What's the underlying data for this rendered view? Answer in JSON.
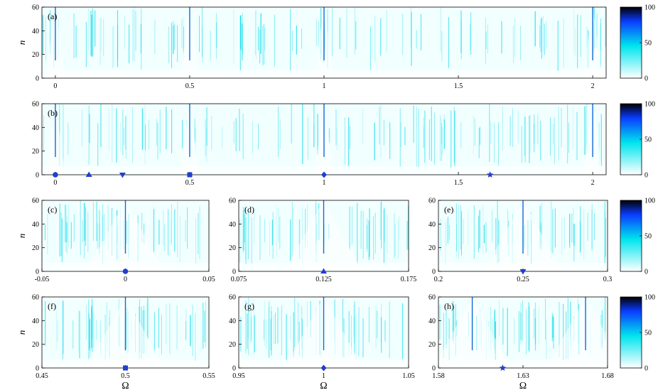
{
  "chart_data": {
    "type": "heatmap",
    "colorbar": {
      "ticks": [
        "0",
        "50",
        "100"
      ],
      "range": [
        0,
        100
      ],
      "colors": [
        "#ffffff",
        "#00e5ee",
        "#0a3cff",
        "#000000"
      ]
    },
    "marker_color": "#1f3fd1",
    "ylabel": "n",
    "xlabel": "Ω",
    "panels": [
      {
        "label": "(a)",
        "xlim": [
          -0.05,
          2.05
        ],
        "ylim": [
          0,
          60
        ],
        "x_ticks": [
          "0",
          "0.5",
          "1",
          "1.5",
          "2"
        ],
        "x_tick_values": [
          0,
          0.5,
          1,
          1.5,
          2
        ],
        "y_ticks": [
          "0",
          "20",
          "40",
          "60"
        ],
        "show_ylabel": true,
        "show_xlabel": false,
        "peaks": [
          0,
          0.5,
          1,
          2
        ],
        "markers": []
      },
      {
        "label": "(b)",
        "xlim": [
          -0.05,
          2.05
        ],
        "ylim": [
          0,
          60
        ],
        "x_ticks": [
          "0",
          "0.5",
          "1",
          "1.5",
          "2"
        ],
        "x_tick_values": [
          0,
          0.5,
          1,
          1.5,
          2
        ],
        "y_ticks": [
          "0",
          "20",
          "40",
          "60"
        ],
        "show_ylabel": false,
        "show_xlabel": false,
        "peaks": [
          0,
          0.5,
          1,
          2
        ],
        "markers": [
          {
            "shape": "circle",
            "x": 0
          },
          {
            "shape": "triangle-up",
            "x": 0.125
          },
          {
            "shape": "triangle-down",
            "x": 0.25
          },
          {
            "shape": "square",
            "x": 0.5
          },
          {
            "shape": "diamond",
            "x": 1
          },
          {
            "shape": "star",
            "x": 1.618
          }
        ]
      },
      {
        "label": "(c)",
        "xlim": [
          -0.05,
          0.05
        ],
        "ylim": [
          0,
          60
        ],
        "x_ticks": [
          "-0.05",
          "0",
          "0.05"
        ],
        "x_tick_values": [
          -0.05,
          0,
          0.05
        ],
        "y_ticks": [
          "0",
          "20",
          "40",
          "60"
        ],
        "show_ylabel": true,
        "show_xlabel": false,
        "peaks": [
          0
        ],
        "markers": [
          {
            "shape": "circle",
            "x": 0
          }
        ]
      },
      {
        "label": "(d)",
        "xlim": [
          0.075,
          0.175
        ],
        "ylim": [
          0,
          60
        ],
        "x_ticks": [
          "0.075",
          "0.125",
          "0.175"
        ],
        "x_tick_values": [
          0.075,
          0.125,
          0.175
        ],
        "y_ticks": [
          "0",
          "20",
          "40",
          "60"
        ],
        "show_ylabel": false,
        "show_xlabel": false,
        "peaks": [
          0.125
        ],
        "markers": [
          {
            "shape": "triangle-up",
            "x": 0.125
          }
        ]
      },
      {
        "label": "(e)",
        "xlim": [
          0.2,
          0.3
        ],
        "ylim": [
          0,
          60
        ],
        "x_ticks": [
          "0.2",
          "0.25",
          "0.3"
        ],
        "x_tick_values": [
          0.2,
          0.25,
          0.3
        ],
        "y_ticks": [
          "0",
          "20",
          "40",
          "60"
        ],
        "show_ylabel": false,
        "show_xlabel": false,
        "peaks": [
          0.25
        ],
        "markers": [
          {
            "shape": "triangle-down",
            "x": 0.25
          }
        ]
      },
      {
        "label": "(f)",
        "xlim": [
          0.45,
          0.55
        ],
        "ylim": [
          0,
          60
        ],
        "x_ticks": [
          "0.45",
          "0.5",
          "0.55"
        ],
        "x_tick_values": [
          0.45,
          0.5,
          0.55
        ],
        "y_ticks": [
          "0",
          "20",
          "40",
          "60"
        ],
        "show_ylabel": true,
        "show_xlabel": true,
        "peaks": [
          0.5
        ],
        "markers": [
          {
            "shape": "square",
            "x": 0.5
          }
        ]
      },
      {
        "label": "(g)",
        "xlim": [
          0.95,
          1.05
        ],
        "ylim": [
          0,
          60
        ],
        "x_ticks": [
          "0.95",
          "1",
          "1.05"
        ],
        "x_tick_values": [
          0.95,
          1,
          1.05
        ],
        "y_ticks": [
          "0",
          "20",
          "40",
          "60"
        ],
        "show_ylabel": false,
        "show_xlabel": true,
        "peaks": [
          1
        ],
        "markers": [
          {
            "shape": "diamond",
            "x": 1
          }
        ]
      },
      {
        "label": "(h)",
        "xlim": [
          1.58,
          1.68
        ],
        "ylim": [
          0,
          60
        ],
        "x_ticks": [
          "1.58",
          "1.63",
          "1.68"
        ],
        "x_tick_values": [
          1.58,
          1.63,
          1.68
        ],
        "y_ticks": [
          "0",
          "20",
          "40",
          "60"
        ],
        "show_ylabel": false,
        "show_xlabel": true,
        "peaks": [
          1.6,
          1.667
        ],
        "markers": [
          {
            "shape": "star",
            "x": 1.618
          }
        ]
      }
    ]
  }
}
